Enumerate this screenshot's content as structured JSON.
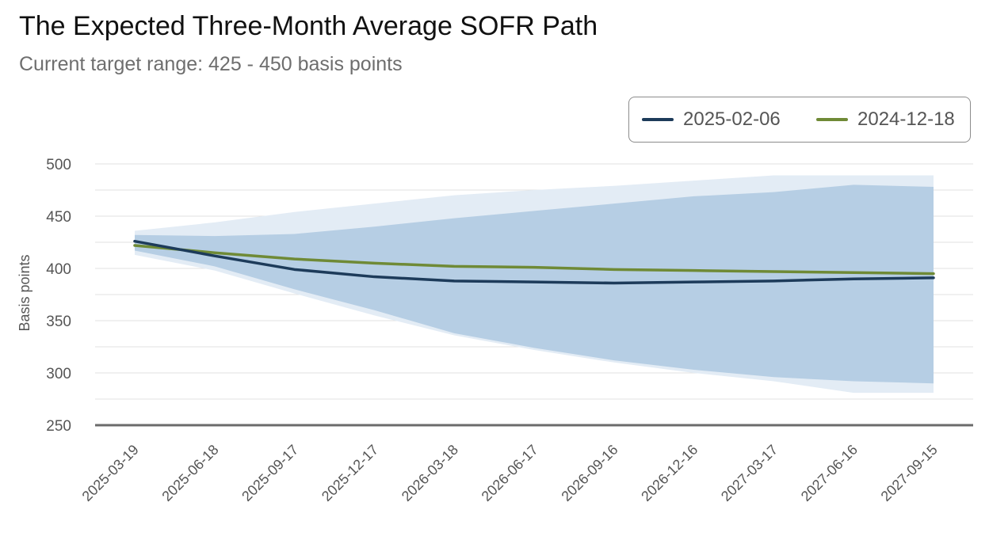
{
  "title": "The Expected Three-Month Average SOFR Path",
  "subtitle": "Current target range: 425 - 450 basis points",
  "colors": {
    "series_a": "#1d3b5a",
    "series_b": "#6f8a36",
    "band_inner": "#b6cee4",
    "band_outer": "#e3ecf5"
  },
  "chart_data": {
    "type": "line",
    "title": "The Expected Three-Month Average SOFR Path",
    "subtitle": "Current target range: 425 - 450 basis points",
    "xlabel": "",
    "ylabel": "Basis points",
    "ylim": [
      250,
      500
    ],
    "yticks": [
      250,
      300,
      350,
      400,
      450,
      500
    ],
    "grid": true,
    "legend_position": "top-right",
    "x": [
      "2025-03-19",
      "2025-06-18",
      "2025-09-17",
      "2025-12-17",
      "2026-03-18",
      "2026-06-17",
      "2026-09-16",
      "2026-12-16",
      "2027-03-17",
      "2027-06-16",
      "2027-09-15"
    ],
    "series": [
      {
        "name": "2025-02-06",
        "values": [
          426,
          412,
          399,
          392,
          388,
          387,
          386,
          387,
          388,
          390,
          391
        ]
      },
      {
        "name": "2024-12-18",
        "values": [
          422,
          415,
          409,
          405,
          402,
          401,
          399,
          398,
          397,
          396,
          395
        ]
      }
    ],
    "bands": [
      {
        "level": "outer",
        "upper": [
          436,
          444,
          454,
          462,
          470,
          475,
          479,
          484,
          489,
          489,
          489
        ],
        "lower": [
          413,
          398,
          376,
          355,
          336,
          322,
          310,
          300,
          292,
          281,
          281
        ]
      },
      {
        "level": "inner",
        "upper": [
          432,
          431,
          433,
          440,
          448,
          455,
          462,
          469,
          473,
          480,
          478
        ],
        "lower": [
          417,
          402,
          380,
          360,
          338,
          324,
          312,
          303,
          296,
          292,
          290
        ]
      }
    ]
  }
}
